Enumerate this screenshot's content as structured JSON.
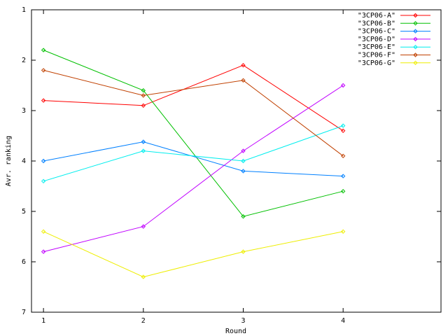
{
  "chart_data": {
    "type": "line",
    "x_label": "Round",
    "y_label": "Avr. ranking",
    "x": [
      1,
      2,
      3,
      4
    ],
    "xlim": [
      0.88,
      4.98
    ],
    "xticks": [
      1,
      2,
      3,
      4
    ],
    "ylim": [
      1,
      7
    ],
    "yticks": [
      1,
      2,
      3,
      4,
      5,
      6,
      7
    ],
    "y_reversed": true,
    "legend": "top-right",
    "series": [
      {
        "name": "\"3CP06-A\"",
        "color": "#ff0000",
        "values": [
          2.8,
          2.9,
          2.1,
          3.4
        ]
      },
      {
        "name": "\"3CP06-B\"",
        "color": "#00c000",
        "values": [
          1.8,
          2.6,
          5.1,
          4.6
        ]
      },
      {
        "name": "\"3CP06-C\"",
        "color": "#0080ff",
        "values": [
          4.0,
          3.62,
          4.2,
          4.3
        ]
      },
      {
        "name": "\"3CP06-D\"",
        "color": "#c000ff",
        "values": [
          5.8,
          5.3,
          3.8,
          2.5
        ]
      },
      {
        "name": "\"3CP06-E\"",
        "color": "#00eeee",
        "values": [
          4.4,
          3.8,
          4.0,
          3.3
        ]
      },
      {
        "name": "\"3CP06-F\"",
        "color": "#c04000",
        "values": [
          2.2,
          2.7,
          2.4,
          3.9
        ]
      },
      {
        "name": "\"3CP06-G\"",
        "color": "#eeee00",
        "values": [
          5.4,
          6.3,
          5.8,
          5.4
        ]
      }
    ]
  }
}
